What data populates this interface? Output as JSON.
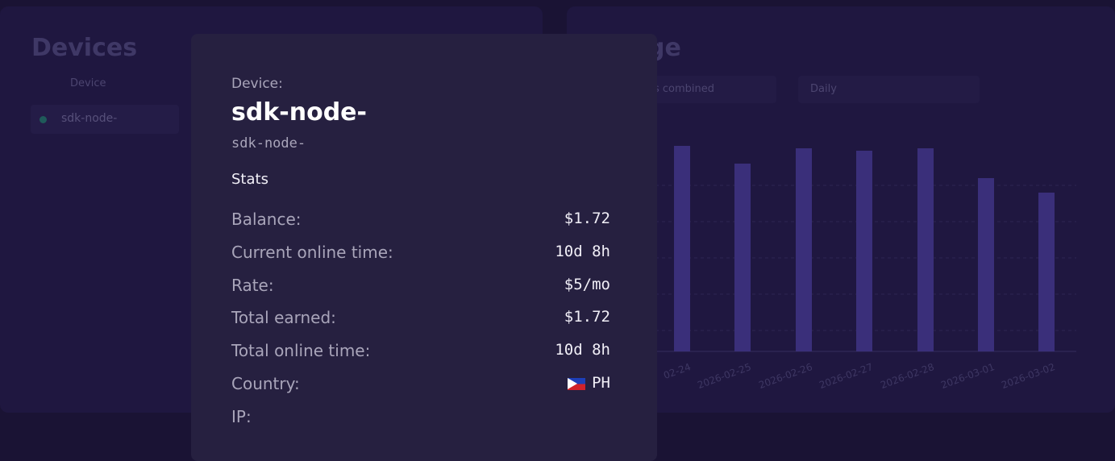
{
  "devices_panel": {
    "title": "Devices",
    "column": "Device",
    "rows": [
      "sdk-node-"
    ]
  },
  "usage_panel": {
    "title_fragment": "ge",
    "filters": [
      "es combined",
      "Daily"
    ],
    "dates": [
      "02-24",
      "2026-02-25",
      "2026-02-26",
      "2026-02-27",
      "2026-02-28",
      "2026-03-01",
      "2026-03-02"
    ]
  },
  "modal": {
    "device_label": "Device:",
    "name": "sdk-node-",
    "id": "sdk-node-",
    "section": "Stats",
    "stats": [
      {
        "label": "Balance:",
        "value": "$1.72"
      },
      {
        "label": "Current online time:",
        "value": "10d 8h"
      },
      {
        "label": "Rate:",
        "value": "$5/mo"
      },
      {
        "label": "Total earned:",
        "value": "$1.72"
      },
      {
        "label": "Total online time:",
        "value": "10d 8h"
      },
      {
        "label": "Country:",
        "value": "PH"
      },
      {
        "label": "IP:"
      }
    ]
  }
}
